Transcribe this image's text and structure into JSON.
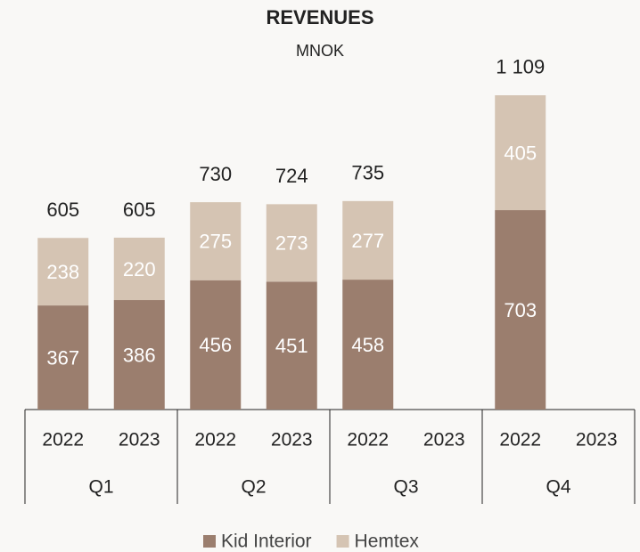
{
  "chart_data": {
    "type": "bar",
    "stacked": true,
    "title": "REVENUES",
    "subtitle": "MNOK",
    "categories": [
      "2022",
      "2023",
      "2022",
      "2023",
      "2022",
      "2023",
      "2022",
      "2023"
    ],
    "groups": [
      "Q1",
      "Q2",
      "Q3",
      "Q4"
    ],
    "series": [
      {
        "name": "Kid Interior",
        "color": "#9b7e6e",
        "values": [
          367,
          386,
          456,
          451,
          458,
          null,
          703,
          null
        ]
      },
      {
        "name": "Hemtex",
        "color": "#d5c4b3",
        "values": [
          238,
          220,
          275,
          273,
          277,
          null,
          405,
          null
        ]
      }
    ],
    "totals": [
      605,
      605,
      730,
      724,
      735,
      null,
      1109,
      null
    ],
    "total_labels": [
      "605",
      "605",
      "730",
      "724",
      "735",
      null,
      "1 109",
      null
    ]
  }
}
